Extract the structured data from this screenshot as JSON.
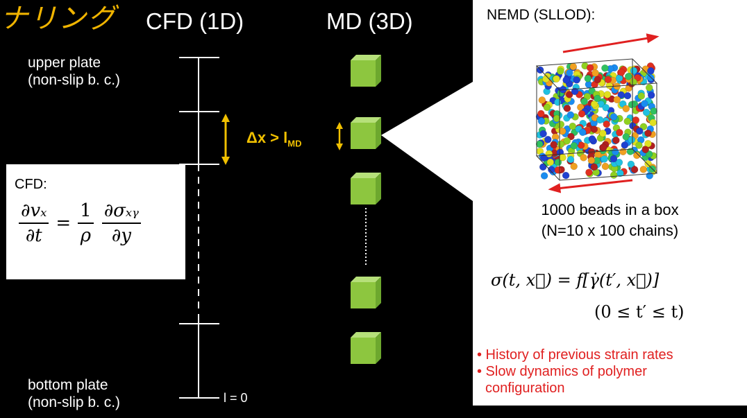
{
  "japanese_text": "ナリング",
  "headers": {
    "cfd": "CFD (1D)",
    "md": "MD (3D)"
  },
  "labels": {
    "upper_plate": "upper plate",
    "upper_plate_bc": "(non-slip b. c.)",
    "bottom_plate": "bottom plate",
    "bottom_plate_bc": "(non-slip b. c.)",
    "origin": "l = 0",
    "dx": "Δx > l",
    "dx_sub": "MD"
  },
  "cfd_box": {
    "title": "CFD:",
    "eq_lhs_num": "∂vₓ",
    "eq_lhs_den": "∂t",
    "eq_equals": "=",
    "eq_coef_num": "1",
    "eq_coef_den": "ρ",
    "eq_rhs_num": "∂σₓᵧ",
    "eq_rhs_den": "∂y"
  },
  "nemd_panel": {
    "title": "NEMD (SLLOD):",
    "beads_line1": "1000 beads in a box",
    "beads_line2": "(N=10 x 100 chains)",
    "formula_line1": "σ(t, x⃗) = f[γ̇(t′, x⃗)]",
    "formula_line2": "(0 ≤ t′ ≤ t)",
    "bullets": [
      "• History of previous strain rates",
      "• Slow dynamics of polymer",
      "   configuration"
    ]
  },
  "colors": {
    "accent_yellow": "#f0c000",
    "cube_green": "#8dc63f",
    "arrow_red": "#e02020",
    "bullet_red": "#e02020"
  }
}
